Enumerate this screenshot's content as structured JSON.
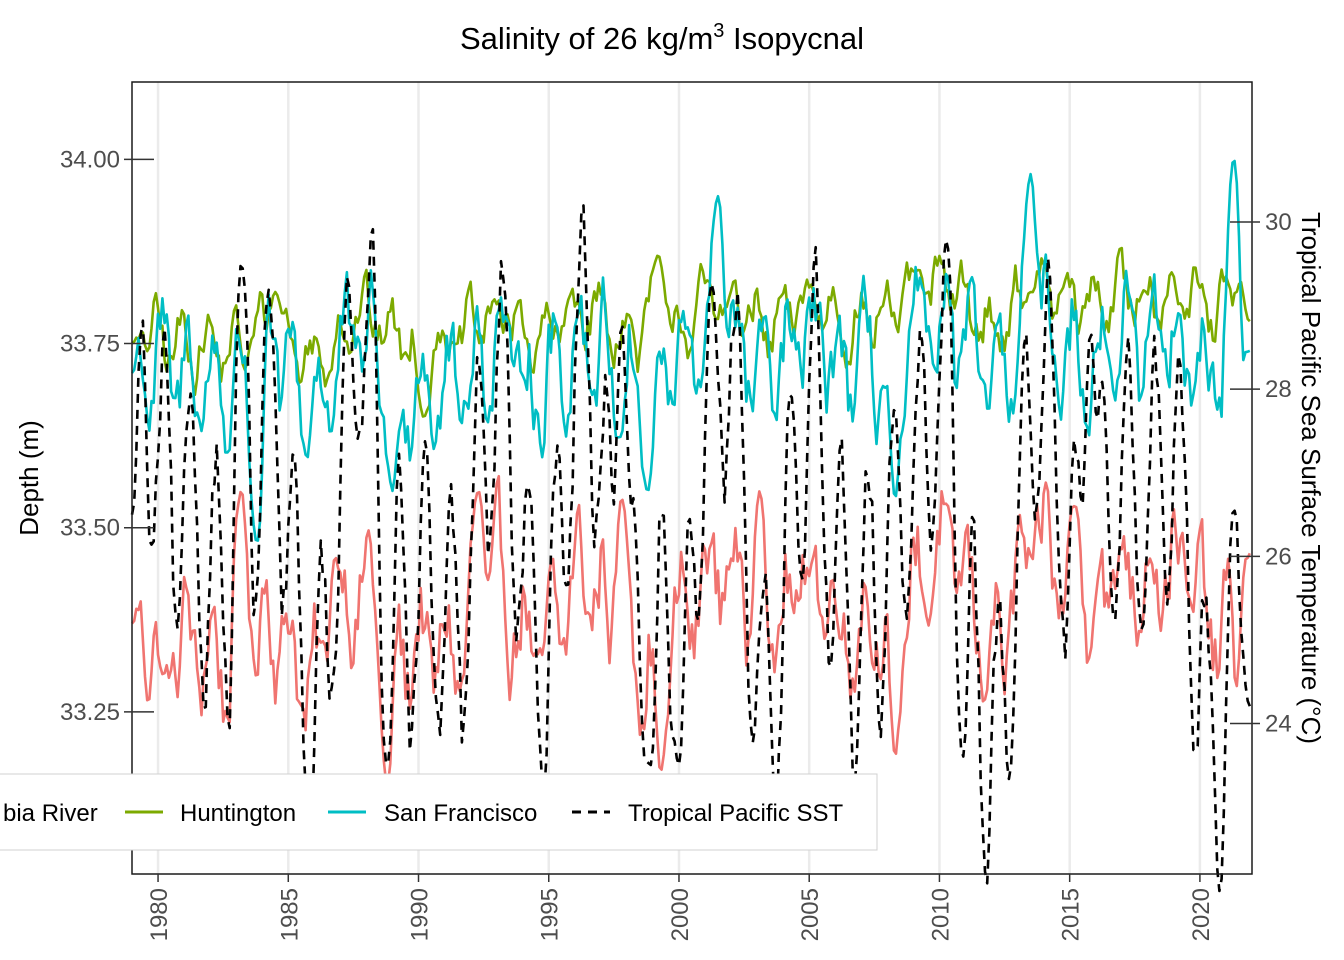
{
  "chart_data": {
    "type": "line",
    "title_main": "Salinity of 26 kg/m",
    "title_sup": "3",
    "title_end": " Isopycnal",
    "ylabel": "Depth (m)",
    "y2label": "Tropical Pacific Sea Surface Temperature (°C)",
    "xlim": [
      1979,
      2022
    ],
    "ylim": [
      33.03,
      34.105
    ],
    "y2lim": [
      22.2,
      31.675
    ],
    "x_ticks": [
      1980,
      1985,
      1990,
      1995,
      2000,
      2005,
      2010,
      2015,
      2020
    ],
    "y_ticks": [
      33.25,
      33.5,
      33.75,
      34.0
    ],
    "y_tick_labels": [
      "33.25",
      "33.50",
      "33.75",
      "34.00"
    ],
    "y2_ticks": [
      24,
      26,
      28,
      30
    ],
    "legend_position": "bottom-left",
    "legend_visible_first": "bia River",
    "series": [
      {
        "name": "Columbia River",
        "legend_label": "bia River",
        "color": "#f07470",
        "dash": "none",
        "axis": "left",
        "mean": 33.33,
        "trend": 0.0026,
        "seasonal": 0.06,
        "noise": 0.05,
        "anomaly": 0.6,
        "phase": 1.0,
        "sparse": [
          [
            1979,
            33.37
          ],
          [
            1980.2,
            33.3
          ],
          [
            1983.2,
            33.55
          ],
          [
            1986.8,
            33.46
          ],
          [
            1988.8,
            33.15
          ],
          [
            1992.3,
            33.55
          ],
          [
            1997.8,
            33.54
          ],
          [
            1999.3,
            33.17
          ],
          [
            2003.1,
            33.55
          ],
          [
            2008.3,
            33.19
          ],
          [
            2015.2,
            33.53
          ],
          [
            2021.5,
            33.25
          ],
          [
            2021.8,
            33.46
          ]
        ]
      },
      {
        "name": "Huntington",
        "color": "#7caa00",
        "dash": "none",
        "axis": "left",
        "mean": 33.745,
        "trend": 0.0018,
        "seasonal": 0.03,
        "noise": 0.025,
        "anomaly": 0.25,
        "phase": 2.0,
        "sparse": [
          [
            1979,
            33.75
          ],
          [
            1984.5,
            33.82
          ],
          [
            1990.2,
            33.65
          ],
          [
            1999.2,
            33.87
          ],
          [
            2009.2,
            33.85
          ],
          [
            2013.5,
            33.82
          ],
          [
            2021.7,
            33.86
          ],
          [
            2021.9,
            33.78
          ]
        ]
      },
      {
        "name": "San Francisco",
        "color": "#00bec4",
        "dash": "none",
        "axis": "left",
        "mean": 33.7,
        "trend": 0.0012,
        "seasonal": 0.06,
        "noise": 0.045,
        "anomaly": 0.35,
        "phase": 0.5,
        "sparse": [
          [
            1979,
            33.71
          ],
          [
            1983.8,
            33.48
          ],
          [
            1989,
            33.55
          ],
          [
            1998.8,
            33.55
          ],
          [
            2001.5,
            33.95
          ],
          [
            2008.3,
            33.54
          ],
          [
            2013.5,
            33.98
          ],
          [
            2021.3,
            34.0
          ],
          [
            2021.9,
            33.74
          ]
        ]
      },
      {
        "name": "Tropical Pacific SST",
        "color": "#000000",
        "dash": "9,7",
        "axis": "right",
        "mean": 26.3,
        "trend": 0.0,
        "seasonal": 1.6,
        "noise": 0.35,
        "anomaly": 3.5,
        "phase": 0.0,
        "sparse": [
          [
            1979,
            26.5
          ],
          [
            1983.2,
            29.5
          ],
          [
            1988.8,
            23.5
          ],
          [
            1997.8,
            28.8
          ],
          [
            1998.9,
            23.5
          ],
          [
            2000,
            23.5
          ],
          [
            2010.9,
            23.6
          ],
          [
            2015.8,
            28.7
          ],
          [
            2021.9,
            24.2
          ]
        ]
      }
    ]
  }
}
